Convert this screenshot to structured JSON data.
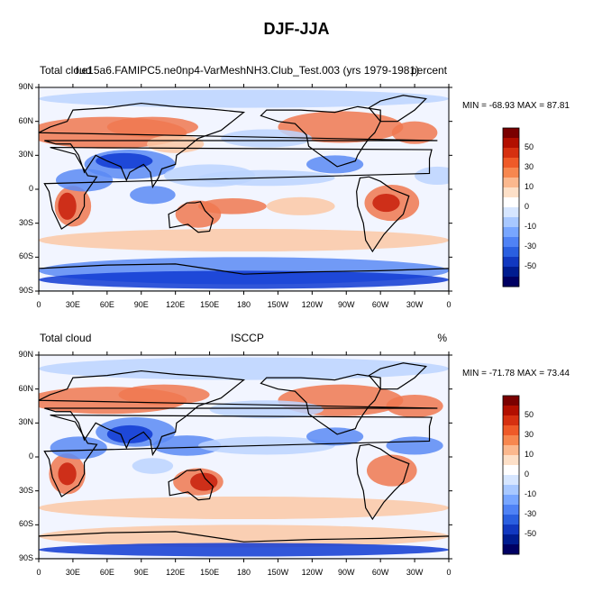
{
  "title": "DJF-JJA",
  "panels": [
    {
      "left_label": "Total cloud",
      "center_label": "f.e15a6.FAMIPC5.ne0np4-VarMeshNH3.Club_Test.003 (yrs 1979-1981)",
      "right_label": "percent",
      "stats": "MIN = -68.93 MAX =  87.81"
    },
    {
      "left_label": "Total cloud",
      "center_label": "ISCCP",
      "right_label": "%",
      "stats": "MIN = -71.78 MAX =  73.44"
    }
  ],
  "lat_ticks": [
    "90N",
    "60N",
    "30N",
    "0",
    "30S",
    "60S",
    "90S"
  ],
  "lon_ticks": [
    "0",
    "30E",
    "60E",
    "90E",
    "120E",
    "150E",
    "180",
    "150W",
    "120W",
    "90W",
    "60W",
    "30W",
    "0"
  ],
  "colorbar": {
    "labels": [
      "50",
      "30",
      "10",
      "0",
      "-10",
      "-30",
      "-50"
    ],
    "colors": [
      "#7a0000",
      "#b20f00",
      "#d63010",
      "#ef5a28",
      "#f7874f",
      "#fbb88e",
      "#fde0c8",
      "#ffffff",
      "#d6e6ff",
      "#a8c8ff",
      "#78a6ff",
      "#4f82f5",
      "#2a5fe0",
      "#1138c0",
      "#001c90",
      "#000063"
    ]
  },
  "map_colors": {
    "ocean_base": "#f2f5ff",
    "strong_pos": "#c81e0a",
    "pos": "#f07850",
    "weak_pos": "#fbc8a6",
    "weak_neg": "#bcd4ff",
    "neg": "#5a8af5",
    "strong_neg": "#0f3ad2",
    "coast": "#000000"
  }
}
